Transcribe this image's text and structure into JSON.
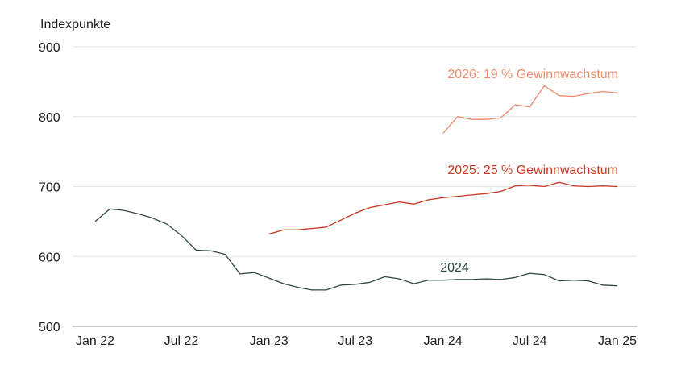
{
  "chart_data": {
    "type": "line",
    "ylabel": "Indexpunkte",
    "ylim": [
      500,
      900
    ],
    "yticks": [
      900,
      800,
      700,
      600,
      500
    ],
    "xticks": [
      "Jan 22",
      "Jul 22",
      "Jan 23",
      "Jul 23",
      "Jan 24",
      "Jul 24",
      "Jan 25"
    ],
    "grid": true,
    "series": [
      {
        "name": "2024",
        "color": "#2f4a46",
        "x": [
          "2022-01-01",
          "2022-02-01",
          "2022-03-01",
          "2022-04-01",
          "2022-05-01",
          "2022-06-01",
          "2022-07-01",
          "2022-08-01",
          "2022-09-01",
          "2022-10-01",
          "2022-11-01",
          "2022-12-01",
          "2023-01-01",
          "2023-02-01",
          "2023-03-01",
          "2023-04-01",
          "2023-05-01",
          "2023-06-01",
          "2023-07-01",
          "2023-08-01",
          "2023-09-01",
          "2023-10-01",
          "2023-11-01",
          "2023-12-01",
          "2024-01-01",
          "2024-02-01",
          "2024-03-01",
          "2024-04-01",
          "2024-05-01",
          "2024-06-01",
          "2024-07-01",
          "2024-08-01",
          "2024-09-01",
          "2024-10-01",
          "2024-11-01",
          "2024-12-01",
          "2025-01-01"
        ],
        "y": [
          650,
          668,
          666,
          661,
          655,
          646,
          630,
          609,
          608,
          603,
          575,
          577,
          569,
          561,
          556,
          552,
          552,
          559,
          560,
          563,
          571,
          568,
          561,
          566,
          566,
          567,
          567,
          568,
          567,
          570,
          576,
          574,
          565,
          566,
          565,
          559,
          558
        ]
      },
      {
        "name": "2025: 25 % Gewinnwachstum",
        "color": "#c8371f",
        "x": [
          "2023-01-01",
          "2023-02-01",
          "2023-03-01",
          "2023-04-01",
          "2023-05-01",
          "2023-06-01",
          "2023-07-01",
          "2023-08-01",
          "2023-09-01",
          "2023-10-01",
          "2023-11-01",
          "2023-12-01",
          "2024-01-01",
          "2024-02-01",
          "2024-03-01",
          "2024-04-01",
          "2024-05-01",
          "2024-06-01",
          "2024-07-01",
          "2024-08-01",
          "2024-09-01",
          "2024-10-01",
          "2024-11-01",
          "2024-12-01",
          "2025-01-01"
        ],
        "y": [
          632,
          638,
          638,
          640,
          642,
          652,
          662,
          670,
          674,
          678,
          675,
          681,
          684,
          686,
          688,
          690,
          693,
          701,
          702,
          700,
          706,
          701,
          700,
          701,
          700
        ]
      },
      {
        "name": "2026: 19 % Gewinnwachstum",
        "color": "#f08a6a",
        "x": [
          "2024-01-01",
          "2024-02-01",
          "2024-03-01",
          "2024-04-01",
          "2024-05-01",
          "2024-06-01",
          "2024-07-01",
          "2024-08-01",
          "2024-09-01",
          "2024-10-01",
          "2024-11-01",
          "2024-12-01",
          "2025-01-01"
        ],
        "y": [
          776,
          800,
          796,
          796,
          798,
          817,
          814,
          844,
          830,
          829,
          833,
          836,
          834
        ]
      }
    ],
    "annotations": [
      {
        "text": "2026: 19 % Gewinnwachstum",
        "color": "#f08a6a"
      },
      {
        "text": "2025: 25 % Gewinnwachstum",
        "color": "#c8371f"
      },
      {
        "text": "2024",
        "color": "#2f4a46"
      }
    ]
  }
}
